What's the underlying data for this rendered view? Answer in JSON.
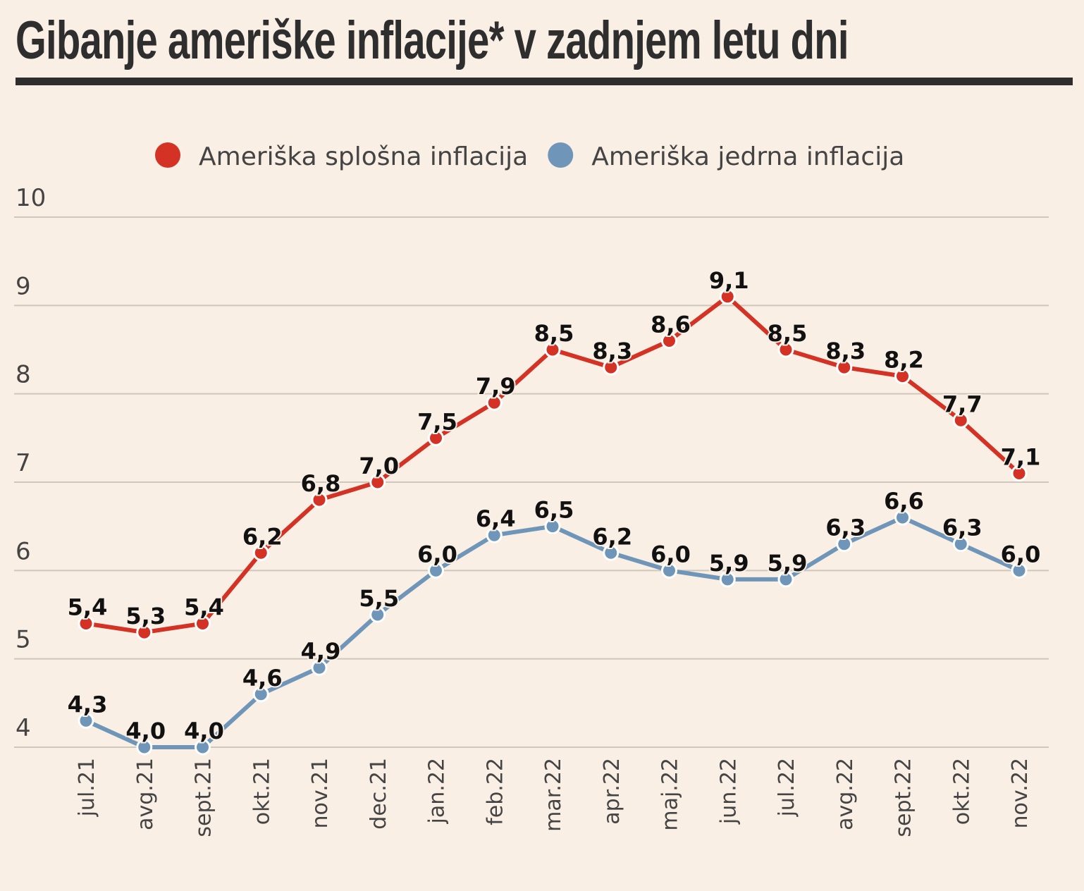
{
  "chart_data": {
    "type": "line",
    "title": "Gibanje ameriške inflacije* v zadnjem letu dni",
    "categories": [
      "jul.21",
      "avg.21",
      "sept.21",
      "okt.21",
      "nov.21",
      "dec.21",
      "jan.22",
      "feb.22",
      "mar.22",
      "apr.22",
      "maj.22",
      "jun.22",
      "jul.22",
      "avg.22",
      "sept.22",
      "okt.22",
      "nov.22"
    ],
    "series": [
      {
        "name": "Ameriška splošna inflacija",
        "color": "#d33224",
        "values": [
          5.4,
          5.3,
          5.4,
          6.2,
          6.8,
          7.0,
          7.5,
          7.9,
          8.5,
          8.3,
          8.6,
          9.1,
          8.5,
          8.3,
          8.2,
          7.7,
          7.1
        ],
        "labels": [
          "5,4",
          "5,3",
          "5,4",
          "6,2",
          "6,8",
          "7,0",
          "7,5",
          "7,9",
          "8,5",
          "8,3",
          "8,6",
          "9,1",
          "8,5",
          "8,3",
          "8,2",
          "7,7",
          "7,1"
        ]
      },
      {
        "name": "Ameriška jedrna inflacija",
        "color": "#6f96b8",
        "values": [
          4.3,
          4.0,
          4.0,
          4.6,
          4.9,
          5.5,
          6.0,
          6.4,
          6.5,
          6.2,
          6.0,
          5.9,
          5.9,
          6.3,
          6.6,
          6.3,
          6.0
        ],
        "labels": [
          "4,3",
          "4,0",
          "4,0",
          "4,6",
          "4,9",
          "5,5",
          "6,0",
          "6,4",
          "6,5",
          "6,2",
          "6,0",
          "5,9",
          "5,9",
          "6,3",
          "6,6",
          "6,3",
          "6,0"
        ]
      }
    ],
    "ylim": [
      4,
      10
    ],
    "yticks": [
      "4",
      "5",
      "6",
      "7",
      "8",
      "9",
      "10"
    ],
    "grid": true,
    "legend": "top-center"
  }
}
